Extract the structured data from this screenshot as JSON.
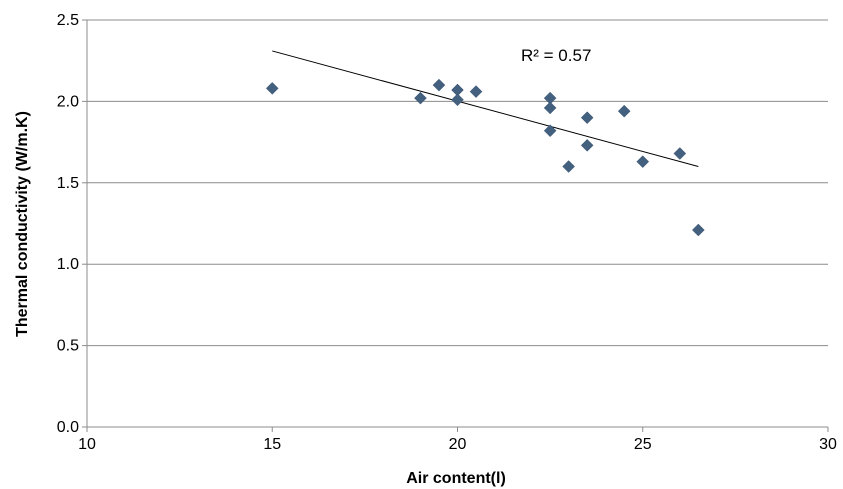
{
  "chart_data": {
    "type": "scatter",
    "title": "",
    "xlabel": "Air content(l)",
    "ylabel": "Thermal conductivity (W/m.K)",
    "xlim": [
      10,
      30
    ],
    "ylim": [
      0.0,
      2.5
    ],
    "x_ticks": [
      "10",
      "15",
      "20",
      "25",
      "30"
    ],
    "y_ticks": [
      "0.0",
      "0.5",
      "1.0",
      "1.5",
      "2.0",
      "2.5"
    ],
    "grid": "horizontal",
    "marker_color": "#44607f",
    "points": [
      {
        "x": 15.0,
        "y": 2.08
      },
      {
        "x": 19.0,
        "y": 2.02
      },
      {
        "x": 19.5,
        "y": 2.1
      },
      {
        "x": 20.0,
        "y": 2.07
      },
      {
        "x": 20.0,
        "y": 2.01
      },
      {
        "x": 20.5,
        "y": 2.06
      },
      {
        "x": 22.5,
        "y": 2.02
      },
      {
        "x": 22.5,
        "y": 1.96
      },
      {
        "x": 22.5,
        "y": 1.82
      },
      {
        "x": 23.0,
        "y": 1.6
      },
      {
        "x": 23.5,
        "y": 1.9
      },
      {
        "x": 23.5,
        "y": 1.73
      },
      {
        "x": 24.5,
        "y": 1.94
      },
      {
        "x": 25.0,
        "y": 1.63
      },
      {
        "x": 26.0,
        "y": 1.68
      },
      {
        "x": 26.5,
        "y": 1.21
      }
    ],
    "trendline": {
      "x": [
        15.0,
        26.5
      ],
      "y": [
        2.31,
        1.6
      ]
    },
    "annotation": "R² = 0.57"
  }
}
